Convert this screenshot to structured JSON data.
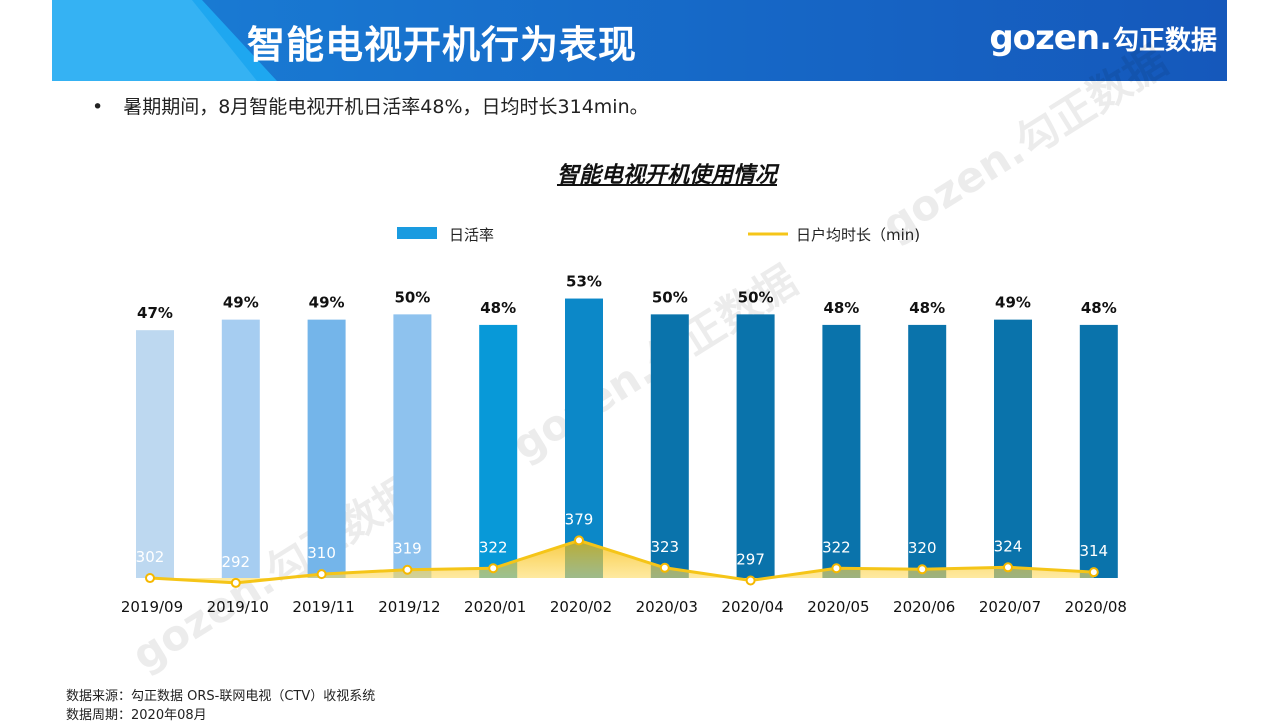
{
  "header": {
    "title": "智能电视开机行为表现",
    "logo_latin": "gozen.",
    "logo_cn": "勾正数据"
  },
  "bullet": {
    "marker": "•",
    "text": "暑期期间，8月智能电视开机日活率48%，日均时长314min。"
  },
  "watermark_text": "gozen.勾正数据",
  "chart_data": {
    "type": "bar+line",
    "title": "智能电视开机使用情况",
    "categories": [
      "2019/09",
      "2019/10",
      "2019/11",
      "2019/12",
      "2020/01",
      "2020/02",
      "2020/03",
      "2020/04",
      "2020/05",
      "2020/06",
      "2020/07",
      "2020/08"
    ],
    "series": [
      {
        "name": "日活率",
        "type": "bar",
        "values": [
          47,
          49,
          49,
          50,
          48,
          53,
          50,
          50,
          48,
          48,
          49,
          48
        ],
        "labels": [
          "47%",
          "49%",
          "49%",
          "50%",
          "48%",
          "53%",
          "50%",
          "50%",
          "48%",
          "48%",
          "49%",
          "48%"
        ],
        "colors": [
          "#bdd8f0",
          "#a6cdf1",
          "#74b5ea",
          "#8ec2ee",
          "#0899d8",
          "#0c88c8",
          "#0a73ab",
          "#0a73ab",
          "#0a73ab",
          "#0a73ab",
          "#0a73ab",
          "#0a73ab"
        ]
      },
      {
        "name": "日户均时长（min)",
        "type": "area-line",
        "values": [
          302,
          292,
          310,
          319,
          322,
          379,
          323,
          297,
          322,
          320,
          324,
          314
        ],
        "color": "#f5c518"
      }
    ],
    "legend_position": "top",
    "bar_ylim": [
      0,
      55
    ],
    "line_ylim": [
      0,
      400
    ]
  },
  "footer": {
    "source": "数据来源：勾正数据 ORS-联网电视（CTV）收视系统",
    "period": "数据周期：2020年08月"
  }
}
